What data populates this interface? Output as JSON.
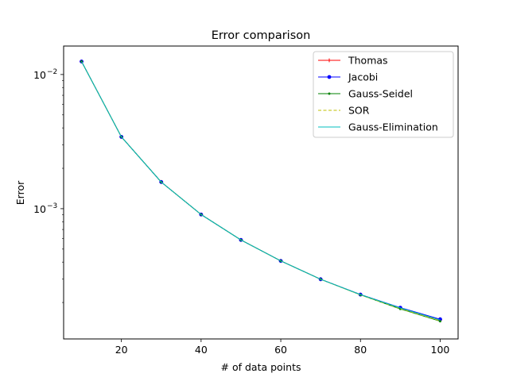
{
  "chart_data": {
    "type": "line",
    "title": "Error comparison",
    "xlabel": "# of data points",
    "ylabel": "Error",
    "yscale": "log",
    "xlim": [
      5.5,
      104.5
    ],
    "ylim": [
      0.000107,
      0.0163
    ],
    "x_ticks": [
      20,
      40,
      60,
      80,
      100
    ],
    "x_tick_labels": [
      "20",
      "40",
      "60",
      "80",
      "100"
    ],
    "y_ticks": [
      0.01,
      0.001
    ],
    "y_tick_labels": [
      {
        "base": "10",
        "exp": "−2"
      },
      {
        "base": "10",
        "exp": "−3"
      }
    ],
    "grid": false,
    "legend_position": "top-right",
    "x": [
      10,
      20,
      30,
      40,
      50,
      60,
      70,
      80,
      90,
      100
    ],
    "series": [
      {
        "name": "Thomas",
        "color": "#ff0000",
        "linestyle": "solid",
        "marker": "plus",
        "values": [
          0.0125,
          0.00343,
          0.00158,
          0.000905,
          0.000585,
          0.000408,
          0.000298,
          0.000229,
          0.000182,
          0.000148
        ]
      },
      {
        "name": "Jacobi",
        "color": "#0000ff",
        "linestyle": "solid",
        "marker": "dot",
        "values": [
          0.0125,
          0.00343,
          0.00158,
          0.000905,
          0.000585,
          0.000408,
          0.000298,
          0.000229,
          0.000183,
          0.00015
        ]
      },
      {
        "name": "Gauss-Seidel",
        "color": "#008000",
        "linestyle": "solid",
        "marker": "small-dot",
        "values": [
          0.0125,
          0.00343,
          0.00158,
          0.000905,
          0.000585,
          0.000408,
          0.000298,
          0.000228,
          0.000179,
          0.000145
        ]
      },
      {
        "name": "SOR",
        "color": "#bfbf00",
        "linestyle": "dashed",
        "marker": "none",
        "values": [
          0.0125,
          0.00343,
          0.00158,
          0.000905,
          0.000585,
          0.000408,
          0.000298,
          0.000228,
          0.00018,
          0.000146
        ]
      },
      {
        "name": "Gauss-Elimination",
        "color": "#00bfbf",
        "linestyle": "solid",
        "marker": "none",
        "values": [
          0.0125,
          0.00343,
          0.00158,
          0.000905,
          0.000585,
          0.000408,
          0.000298,
          0.000229,
          0.000182,
          0.000148
        ]
      }
    ]
  }
}
